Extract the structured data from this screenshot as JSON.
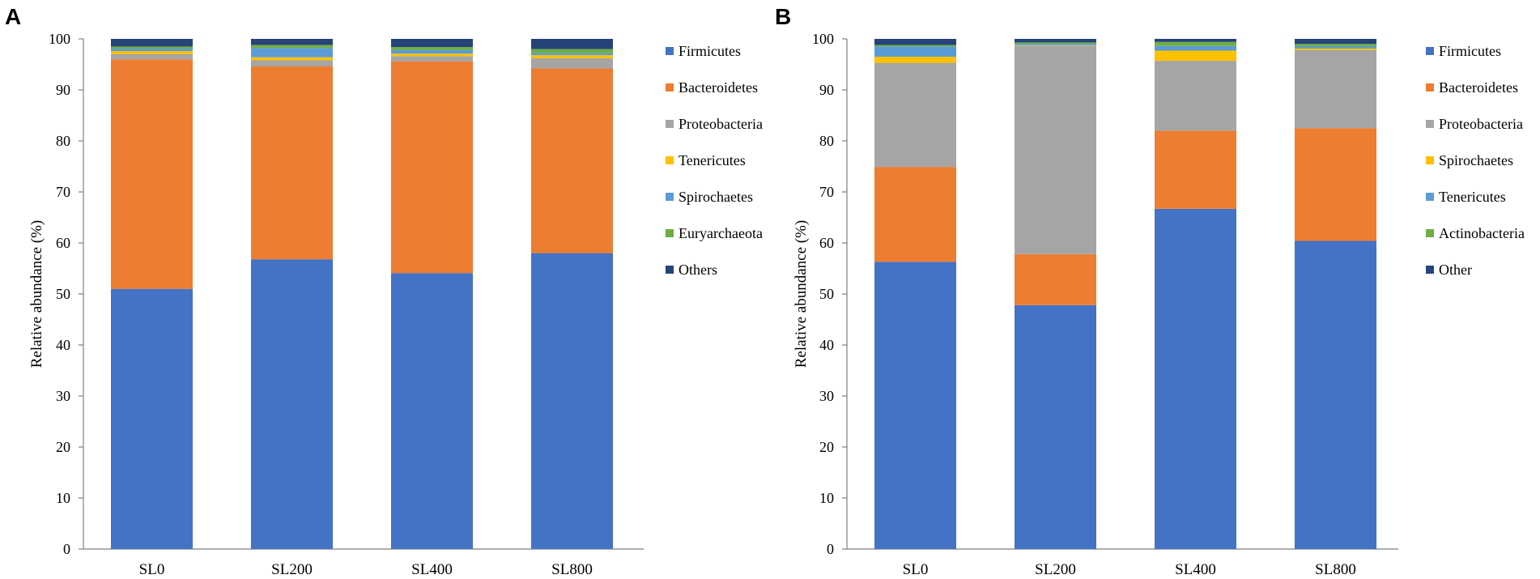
{
  "chart_data": [
    {
      "panel": "A",
      "type": "bar",
      "stacked": true,
      "ylabel": "Relative abundance (%)",
      "xlabel": "",
      "ylim": [
        0,
        100
      ],
      "yticks": [
        0,
        10,
        20,
        30,
        40,
        50,
        60,
        70,
        80,
        90,
        100
      ],
      "legend_position": "right",
      "categories": [
        "SL0",
        "SL200",
        "SL400",
        "SL800"
      ],
      "series": [
        {
          "name": "Firmicutes",
          "color": "#4472C4",
          "values": [
            51.0,
            56.8,
            54.1,
            58.0
          ]
        },
        {
          "name": "Bacteroidetes",
          "color": "#ED7D31",
          "values": [
            45.0,
            37.8,
            41.5,
            36.2
          ]
        },
        {
          "name": "Proteobacteria",
          "color": "#A5A5A5",
          "values": [
            1.0,
            1.2,
            1.0,
            2.0
          ]
        },
        {
          "name": "Tenericutes",
          "color": "#FFC000",
          "values": [
            0.6,
            0.6,
            0.5,
            0.6
          ]
        },
        {
          "name": "Spirochaetes",
          "color": "#5B9BD5",
          "values": [
            0.5,
            1.8,
            0.7,
            0.4
          ]
        },
        {
          "name": "Euryarchaeota",
          "color": "#70AD47",
          "values": [
            0.4,
            0.6,
            0.6,
            0.8
          ]
        },
        {
          "name": "Others",
          "color": "#264478",
          "values": [
            1.5,
            1.2,
            1.6,
            2.0
          ]
        }
      ]
    },
    {
      "panel": "B",
      "type": "bar",
      "stacked": true,
      "ylabel": "Relative abundance (%)",
      "xlabel": "",
      "ylim": [
        0,
        100
      ],
      "yticks": [
        0,
        10,
        20,
        30,
        40,
        50,
        60,
        70,
        80,
        90,
        100
      ],
      "legend_position": "right",
      "categories": [
        "SL0",
        "SL200",
        "SL400",
        "SL800"
      ],
      "series": [
        {
          "name": "Firmicutes",
          "color": "#4472C4",
          "values": [
            56.3,
            47.8,
            66.7,
            60.4
          ]
        },
        {
          "name": "Bacteroidetes",
          "color": "#ED7D31",
          "values": [
            18.6,
            10.0,
            15.3,
            22.1
          ]
        },
        {
          "name": "Proteobacteria",
          "color": "#A5A5A5",
          "values": [
            20.4,
            40.8,
            13.7,
            15.3
          ]
        },
        {
          "name": "Spirochaetes",
          "color": "#FFC000",
          "values": [
            1.2,
            0.1,
            2.0,
            0.3
          ]
        },
        {
          "name": "Tenericutes",
          "color": "#5B9BD5",
          "values": [
            2.0,
            0.3,
            0.9,
            0.4
          ]
        },
        {
          "name": "Actinobacteria",
          "color": "#70AD47",
          "values": [
            0.3,
            0.3,
            0.8,
            0.5
          ]
        },
        {
          "name": "Other",
          "color": "#264478",
          "values": [
            1.2,
            0.7,
            0.6,
            1.0
          ]
        }
      ]
    }
  ]
}
